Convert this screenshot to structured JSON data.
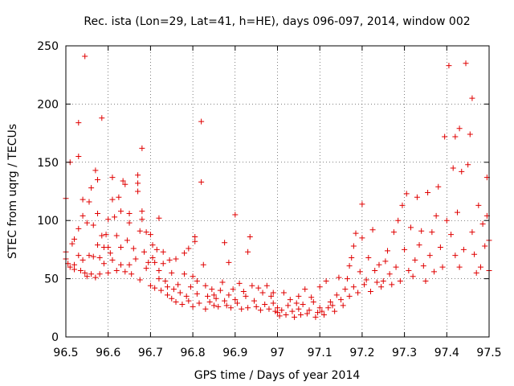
{
  "chart_data": {
    "type": "scatter",
    "title": "Rec. ista (Lon=29, Lat=41, h=HE), days 096-097, 2014, window 002",
    "xlabel": "GPS time / Days of year 2014",
    "ylabel": "STEC from uqrg / TECUs",
    "xlim": [
      96.5,
      97.5
    ],
    "ylim": [
      0,
      250
    ],
    "xticks": [
      96.5,
      96.6,
      96.7,
      96.8,
      96.9,
      97,
      97.1,
      97.2,
      97.3,
      97.4,
      97.5
    ],
    "xtick_labels": [
      "96.5",
      "96.6",
      "96.7",
      "96.8",
      "96.9",
      "97",
      "97.1",
      "97.2",
      "97.3",
      "97.4",
      "97.5"
    ],
    "yticks": [
      0,
      50,
      100,
      150,
      200,
      250
    ],
    "ytick_labels": [
      "0",
      "50",
      "100",
      "150",
      "200",
      "250"
    ],
    "grid": true,
    "marker": "+",
    "color": "#e00000",
    "points": [
      [
        96.5,
        119
      ],
      [
        96.5,
        73
      ],
      [
        96.5,
        67
      ],
      [
        96.505,
        63
      ],
      [
        96.51,
        60
      ],
      [
        96.51,
        150
      ],
      [
        96.515,
        80
      ],
      [
        96.52,
        84
      ],
      [
        96.52,
        62
      ],
      [
        96.52,
        58
      ],
      [
        96.53,
        184
      ],
      [
        96.53,
        155
      ],
      [
        96.53,
        93
      ],
      [
        96.53,
        70
      ],
      [
        96.535,
        57
      ],
      [
        96.54,
        118
      ],
      [
        96.54,
        104
      ],
      [
        96.54,
        66
      ],
      [
        96.545,
        241
      ],
      [
        96.545,
        55
      ],
      [
        96.55,
        98
      ],
      [
        96.55,
        52
      ],
      [
        96.555,
        116
      ],
      [
        96.555,
        70
      ],
      [
        96.56,
        128
      ],
      [
        96.56,
        54
      ],
      [
        96.565,
        96
      ],
      [
        96.565,
        69
      ],
      [
        96.57,
        143
      ],
      [
        96.57,
        51
      ],
      [
        96.575,
        135
      ],
      [
        96.575,
        79
      ],
      [
        96.575,
        106
      ],
      [
        96.58,
        68
      ],
      [
        96.58,
        54
      ],
      [
        96.585,
        188
      ],
      [
        96.585,
        87
      ],
      [
        96.59,
        77
      ],
      [
        96.59,
        63
      ],
      [
        96.595,
        88
      ],
      [
        96.6,
        101
      ],
      [
        96.6,
        77
      ],
      [
        96.6,
        55
      ],
      [
        96.605,
        72
      ],
      [
        96.61,
        137
      ],
      [
        96.61,
        118
      ],
      [
        96.61,
        66
      ],
      [
        96.615,
        103
      ],
      [
        96.62,
        57
      ],
      [
        96.62,
        87
      ],
      [
        96.625,
        120
      ],
      [
        96.63,
        108
      ],
      [
        96.63,
        62
      ],
      [
        96.63,
        77
      ],
      [
        96.635,
        134
      ],
      [
        96.64,
        56
      ],
      [
        96.64,
        131
      ],
      [
        96.645,
        83
      ],
      [
        96.65,
        106
      ],
      [
        96.65,
        98
      ],
      [
        96.65,
        62
      ],
      [
        96.655,
        54
      ],
      [
        96.66,
        76
      ],
      [
        96.665,
        67
      ],
      [
        96.67,
        139
      ],
      [
        96.67,
        132
      ],
      [
        96.67,
        125
      ],
      [
        96.675,
        91
      ],
      [
        96.675,
        49
      ],
      [
        96.68,
        162
      ],
      [
        96.68,
        108
      ],
      [
        96.68,
        101
      ],
      [
        96.685,
        73
      ],
      [
        96.69,
        59
      ],
      [
        96.69,
        90
      ],
      [
        96.695,
        64
      ],
      [
        96.7,
        88
      ],
      [
        96.7,
        44
      ],
      [
        96.705,
        79
      ],
      [
        96.705,
        68
      ],
      [
        96.71,
        64
      ],
      [
        96.71,
        42
      ],
      [
        96.715,
        75
      ],
      [
        96.72,
        102
      ],
      [
        96.72,
        50
      ],
      [
        96.72,
        57
      ],
      [
        96.725,
        40
      ],
      [
        96.73,
        73
      ],
      [
        96.73,
        63
      ],
      [
        96.735,
        48
      ],
      [
        96.74,
        36
      ],
      [
        96.74,
        43
      ],
      [
        96.745,
        66
      ],
      [
        96.75,
        55
      ],
      [
        96.75,
        33
      ],
      [
        96.755,
        41
      ],
      [
        96.76,
        67
      ],
      [
        96.76,
        30
      ],
      [
        96.765,
        45
      ],
      [
        96.77,
        38
      ],
      [
        96.775,
        28
      ],
      [
        96.78,
        72
      ],
      [
        96.78,
        54
      ],
      [
        96.785,
        35
      ],
      [
        96.79,
        76
      ],
      [
        96.79,
        31
      ],
      [
        96.795,
        43
      ],
      [
        96.8,
        52
      ],
      [
        96.8,
        26
      ],
      [
        96.805,
        86
      ],
      [
        96.805,
        82
      ],
      [
        96.81,
        48
      ],
      [
        96.81,
        37
      ],
      [
        96.815,
        29
      ],
      [
        96.82,
        185
      ],
      [
        96.82,
        133
      ],
      [
        96.825,
        62
      ],
      [
        96.83,
        44
      ],
      [
        96.83,
        24
      ],
      [
        96.835,
        35
      ],
      [
        96.84,
        30
      ],
      [
        96.845,
        41
      ],
      [
        96.85,
        27
      ],
      [
        96.85,
        36
      ],
      [
        96.855,
        33
      ],
      [
        96.86,
        26
      ],
      [
        96.865,
        40
      ],
      [
        96.87,
        47
      ],
      [
        96.875,
        81
      ],
      [
        96.875,
        31
      ],
      [
        96.88,
        27
      ],
      [
        96.885,
        64
      ],
      [
        96.885,
        36
      ],
      [
        96.89,
        25
      ],
      [
        96.895,
        41
      ],
      [
        96.9,
        105
      ],
      [
        96.9,
        32
      ],
      [
        96.905,
        29
      ],
      [
        96.91,
        46
      ],
      [
        96.915,
        24
      ],
      [
        96.92,
        39
      ],
      [
        96.925,
        35
      ],
      [
        96.93,
        73
      ],
      [
        96.93,
        25
      ],
      [
        96.935,
        86
      ],
      [
        96.94,
        44
      ],
      [
        96.945,
        31
      ],
      [
        96.95,
        26
      ],
      [
        96.955,
        42
      ],
      [
        96.96,
        23
      ],
      [
        96.965,
        38
      ],
      [
        96.97,
        28
      ],
      [
        96.975,
        44
      ],
      [
        96.98,
        24
      ],
      [
        96.985,
        35
      ],
      [
        96.99,
        38
      ],
      [
        96.99,
        29
      ],
      [
        96.995,
        22
      ],
      [
        97,
        25
      ],
      [
        97,
        21
      ],
      [
        97.005,
        18
      ],
      [
        97.01,
        23
      ],
      [
        97.015,
        38
      ],
      [
        97.02,
        19
      ],
      [
        97.025,
        27
      ],
      [
        97.03,
        32
      ],
      [
        97.035,
        22
      ],
      [
        97.04,
        17
      ],
      [
        97.045,
        29
      ],
      [
        97.05,
        35
      ],
      [
        97.05,
        24
      ],
      [
        97.055,
        19
      ],
      [
        97.06,
        28
      ],
      [
        97.065,
        41
      ],
      [
        97.07,
        20
      ],
      [
        97.075,
        23
      ],
      [
        97.08,
        34
      ],
      [
        97.085,
        30
      ],
      [
        97.09,
        17
      ],
      [
        97.095,
        21
      ],
      [
        97.1,
        25
      ],
      [
        97.1,
        43
      ],
      [
        97.105,
        22
      ],
      [
        97.11,
        19
      ],
      [
        97.115,
        48
      ],
      [
        97.12,
        25
      ],
      [
        97.125,
        30
      ],
      [
        97.13,
        27
      ],
      [
        97.135,
        22
      ],
      [
        97.14,
        36
      ],
      [
        97.145,
        51
      ],
      [
        97.15,
        32
      ],
      [
        97.155,
        27
      ],
      [
        97.16,
        41
      ],
      [
        97.165,
        50
      ],
      [
        97.17,
        35
      ],
      [
        97.17,
        61
      ],
      [
        97.175,
        68
      ],
      [
        97.18,
        43
      ],
      [
        97.18,
        78
      ],
      [
        97.185,
        89
      ],
      [
        97.19,
        38
      ],
      [
        97.195,
        56
      ],
      [
        97.2,
        114
      ],
      [
        97.2,
        85
      ],
      [
        97.205,
        45
      ],
      [
        97.21,
        49
      ],
      [
        97.215,
        68
      ],
      [
        97.22,
        39
      ],
      [
        97.225,
        92
      ],
      [
        97.23,
        57
      ],
      [
        97.235,
        47
      ],
      [
        97.24,
        62
      ],
      [
        97.245,
        43
      ],
      [
        97.25,
        48
      ],
      [
        97.255,
        65
      ],
      [
        97.26,
        74
      ],
      [
        97.265,
        54
      ],
      [
        97.27,
        45
      ],
      [
        97.275,
        90
      ],
      [
        97.28,
        60
      ],
      [
        97.285,
        100
      ],
      [
        97.29,
        48
      ],
      [
        97.295,
        113
      ],
      [
        97.3,
        75
      ],
      [
        97.305,
        123
      ],
      [
        97.31,
        57
      ],
      [
        97.315,
        94
      ],
      [
        97.32,
        52
      ],
      [
        97.325,
        66
      ],
      [
        97.33,
        120
      ],
      [
        97.335,
        79
      ],
      [
        97.34,
        91
      ],
      [
        97.345,
        61
      ],
      [
        97.35,
        48
      ],
      [
        97.355,
        124
      ],
      [
        97.36,
        70
      ],
      [
        97.365,
        90
      ],
      [
        97.37,
        56
      ],
      [
        97.375,
        104
      ],
      [
        97.38,
        129
      ],
      [
        97.385,
        77
      ],
      [
        97.39,
        60
      ],
      [
        97.395,
        172
      ],
      [
        97.4,
        100
      ],
      [
        97.405,
        233
      ],
      [
        97.41,
        88
      ],
      [
        97.415,
        145
      ],
      [
        97.42,
        172
      ],
      [
        97.42,
        70
      ],
      [
        97.425,
        107
      ],
      [
        97.43,
        179
      ],
      [
        97.43,
        60
      ],
      [
        97.435,
        142
      ],
      [
        97.44,
        75
      ],
      [
        97.445,
        235
      ],
      [
        97.45,
        148
      ],
      [
        97.455,
        174
      ],
      [
        97.46,
        205
      ],
      [
        97.46,
        90
      ],
      [
        97.465,
        71
      ],
      [
        97.47,
        55
      ],
      [
        97.475,
        113
      ],
      [
        97.48,
        60
      ],
      [
        97.485,
        97
      ],
      [
        97.49,
        78
      ],
      [
        97.495,
        137
      ],
      [
        97.495,
        104
      ],
      [
        97.5,
        83
      ],
      [
        97.5,
        57
      ]
    ]
  }
}
